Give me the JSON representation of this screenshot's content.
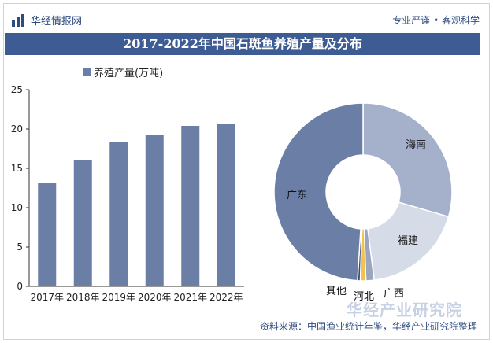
{
  "header": {
    "brand": "华经情报网",
    "slogan": "专业严谨 • 客观科学"
  },
  "title": "2017-2022年中国石斑鱼养殖产量及分布",
  "source": "资料来源：中国渔业统计年鉴，华经产业研究院整理",
  "watermark": "华经产业研究院",
  "colors": {
    "bar": "#6b7ea6",
    "title_bg": "#3d5c93",
    "brand": "#2f4c80"
  },
  "chart_data": [
    {
      "type": "bar",
      "categories": [
        "2017年",
        "2018年",
        "2019年",
        "2020年",
        "2021年",
        "2022年"
      ],
      "series": [
        {
          "name": "养殖产量(万吨)",
          "values": [
            13.2,
            16.0,
            18.3,
            19.2,
            20.4,
            20.6
          ]
        }
      ],
      "y_ticks": [
        "0",
        "5",
        "10",
        "15",
        "20",
        "25"
      ],
      "ylim": [
        0,
        25
      ],
      "grid": false,
      "legend": "top-left"
    },
    {
      "type": "pie",
      "style": "donut",
      "slices": [
        {
          "label": "海南",
          "value": 29.5,
          "color": "#a5b1cb"
        },
        {
          "label": "福建",
          "value": 18.5,
          "color": "#d5dbe7"
        },
        {
          "label": "广西",
          "value": 1.5,
          "color": "#9aa6bf"
        },
        {
          "label": "河北",
          "value": 1.0,
          "color": "#f2c14e"
        },
        {
          "label": "其他",
          "value": 0.5,
          "color": "#3f4c66"
        },
        {
          "label": "广东",
          "value": 49.0,
          "color": "#6b7ea6"
        }
      ]
    }
  ]
}
